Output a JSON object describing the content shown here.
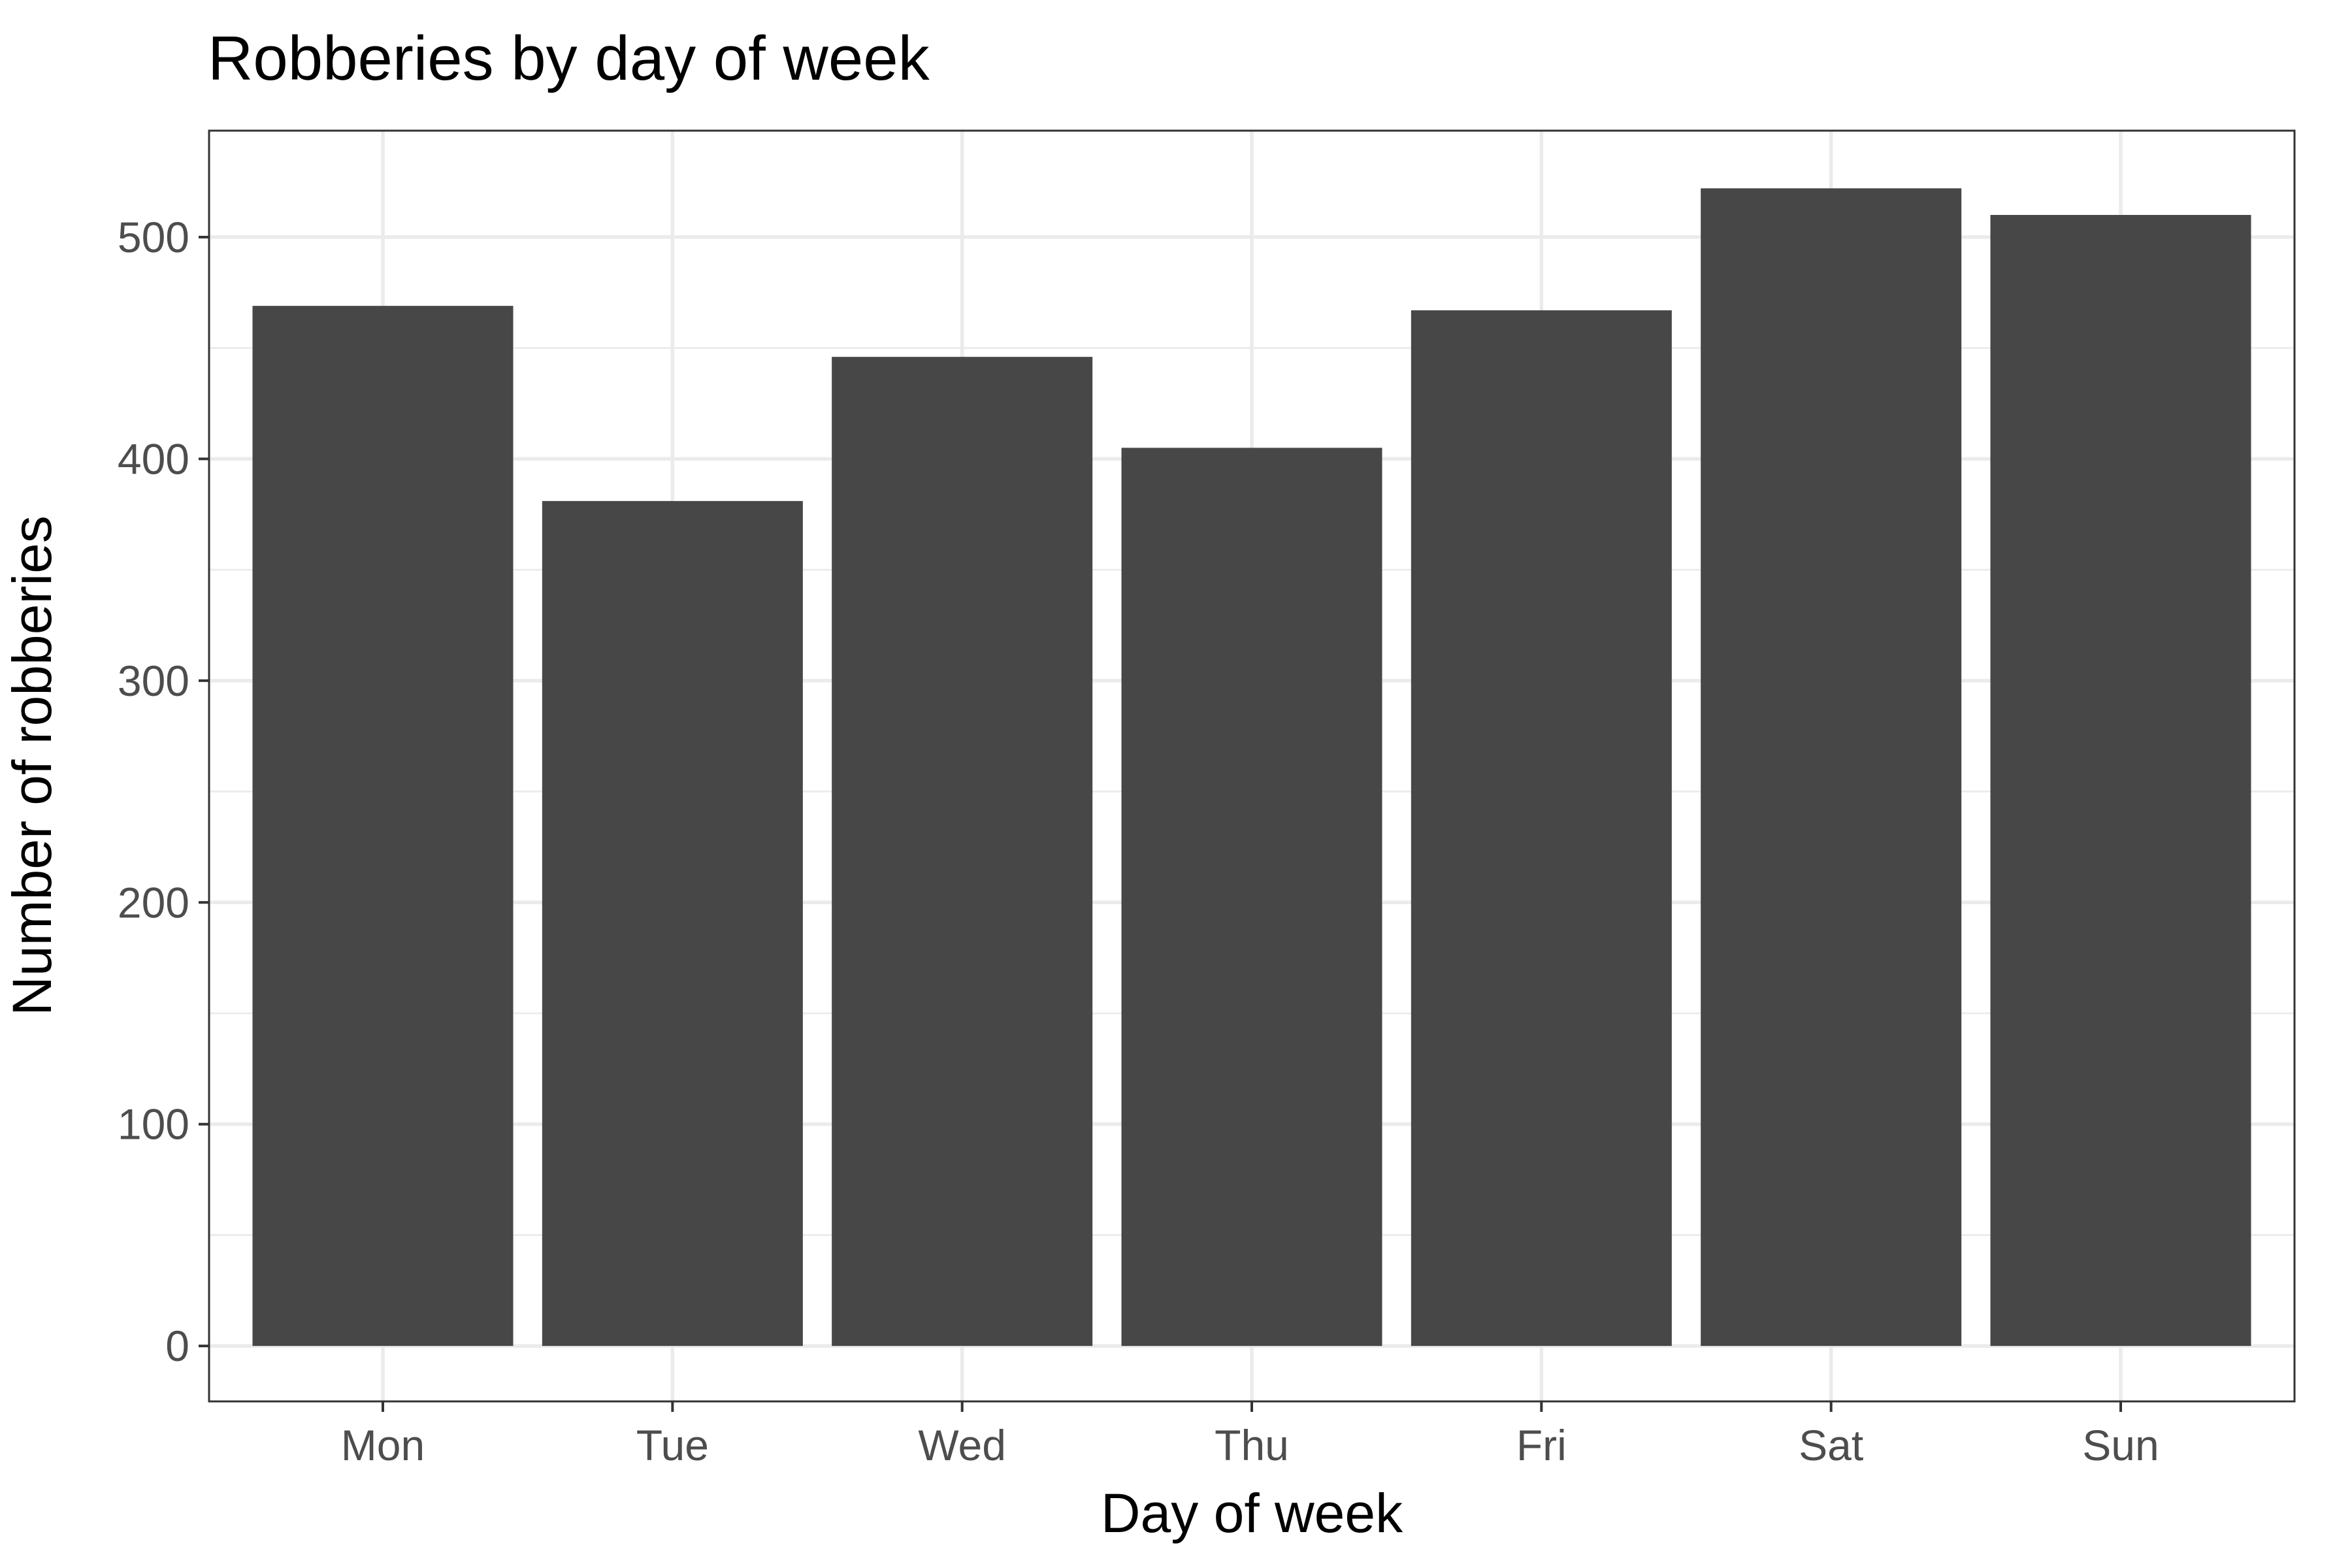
{
  "chart_data": {
    "type": "bar",
    "title": "Robberies by day of week",
    "xlabel": "Day of week",
    "ylabel": "Number of robberies",
    "categories": [
      "Mon",
      "Tue",
      "Wed",
      "Thu",
      "Fri",
      "Sat",
      "Sun"
    ],
    "values": [
      469,
      381,
      446,
      405,
      467,
      522,
      510
    ],
    "ylim": [
      -25,
      548
    ],
    "yticks": [
      0,
      100,
      200,
      300,
      400,
      500
    ],
    "grid": true,
    "bar_color": "#474747",
    "legend": "none"
  }
}
